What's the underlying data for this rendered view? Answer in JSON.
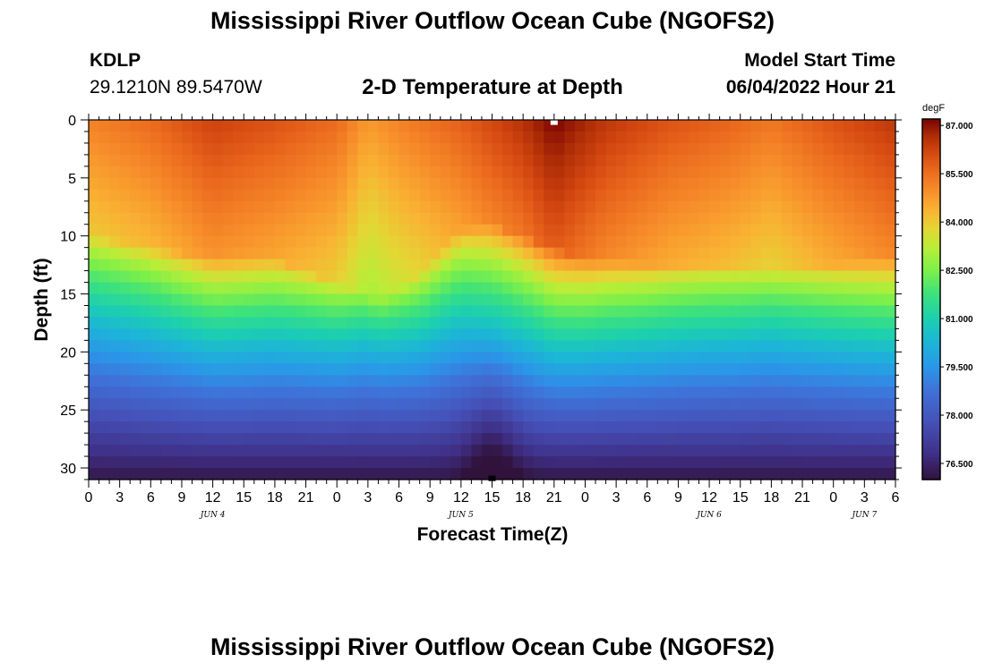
{
  "page": {
    "title": "Mississippi River Outflow Ocean Cube (NGOFS2)",
    "footer_title": "Mississippi River Outflow Ocean Cube (NGOFS2)"
  },
  "station": {
    "id": "KDLP",
    "coords": "29.1210N  89.5470W"
  },
  "model": {
    "start_label": "Model Start Time",
    "start_value": "06/04/2022 Hour 21"
  },
  "colors": {
    "stops": [
      [
        76.0,
        "#30123b"
      ],
      [
        76.8,
        "#3f2f86"
      ],
      [
        77.8,
        "#4551b8"
      ],
      [
        78.8,
        "#3f72d8"
      ],
      [
        79.5,
        "#2b96e8"
      ],
      [
        80.3,
        "#1cb6d6"
      ],
      [
        81.0,
        "#1ccfb0"
      ],
      [
        81.8,
        "#3ee27b"
      ],
      [
        82.5,
        "#7cef4b"
      ],
      [
        83.2,
        "#b7ee38"
      ],
      [
        83.8,
        "#e4d634"
      ],
      [
        84.4,
        "#f9b233"
      ],
      [
        85.0,
        "#f78d2a"
      ],
      [
        85.6,
        "#eb6a1e"
      ],
      [
        86.2,
        "#d24610"
      ],
      [
        86.7,
        "#ad2c06"
      ],
      [
        87.2,
        "#7a0403"
      ]
    ]
  },
  "chart_data": {
    "type": "heatmap",
    "title": "2-D Temperature at Depth",
    "xlabel": "Forecast Time(Z)",
    "ylabel": "Depth (ft)",
    "x_range_hours": [
      0,
      78
    ],
    "ylim": [
      0,
      31
    ],
    "x_ticks": [
      {
        "hour": 0,
        "label": "0"
      },
      {
        "hour": 3,
        "label": "3"
      },
      {
        "hour": 6,
        "label": "6"
      },
      {
        "hour": 9,
        "label": "9"
      },
      {
        "hour": 12,
        "label": "12"
      },
      {
        "hour": 15,
        "label": "15"
      },
      {
        "hour": 18,
        "label": "18"
      },
      {
        "hour": 21,
        "label": "21"
      },
      {
        "hour": 24,
        "label": "0"
      },
      {
        "hour": 27,
        "label": "3"
      },
      {
        "hour": 30,
        "label": "6"
      },
      {
        "hour": 33,
        "label": "9"
      },
      {
        "hour": 36,
        "label": "12"
      },
      {
        "hour": 39,
        "label": "15"
      },
      {
        "hour": 42,
        "label": "18"
      },
      {
        "hour": 45,
        "label": "21"
      },
      {
        "hour": 48,
        "label": "0"
      },
      {
        "hour": 51,
        "label": "3"
      },
      {
        "hour": 54,
        "label": "6"
      },
      {
        "hour": 57,
        "label": "9"
      },
      {
        "hour": 60,
        "label": "12"
      },
      {
        "hour": 63,
        "label": "15"
      },
      {
        "hour": 66,
        "label": "18"
      },
      {
        "hour": 69,
        "label": "21"
      },
      {
        "hour": 72,
        "label": "0"
      },
      {
        "hour": 75,
        "label": "3"
      },
      {
        "hour": 78,
        "label": "6"
      }
    ],
    "day_labels": [
      {
        "hour": 12,
        "label": "JUN 4"
      },
      {
        "hour": 36,
        "label": "JUN 5"
      },
      {
        "hour": 60,
        "label": "JUN 6"
      },
      {
        "hour": 75,
        "label": "JUN 7"
      }
    ],
    "y_ticks": [
      0,
      5,
      10,
      15,
      20,
      25,
      30
    ],
    "colorbar": {
      "unit": "degF",
      "min": 76.0,
      "max": 87.2,
      "ticks": [
        "87.000",
        "85.500",
        "84.000",
        "82.500",
        "81.000",
        "79.500",
        "78.000",
        "76.500"
      ]
    },
    "markers": [
      {
        "name": "surface-marker",
        "hour": 45,
        "depth": 0.2,
        "color": "#ffffff"
      },
      {
        "name": "bottom-marker",
        "hour": 39,
        "depth": 30.9,
        "color": "#000000"
      }
    ],
    "grid": {
      "cols": 78,
      "rows": 31,
      "surface_temp_by_hour": [
        [
          0,
          85.2
        ],
        [
          6,
          85.6
        ],
        [
          12,
          86.3
        ],
        [
          18,
          86.0
        ],
        [
          24,
          85.6
        ],
        [
          27,
          84.8
        ],
        [
          30,
          85.2
        ],
        [
          36,
          85.8
        ],
        [
          42,
          86.6
        ],
        [
          45,
          87.2
        ],
        [
          50,
          86.5
        ],
        [
          56,
          86.0
        ],
        [
          62,
          85.7
        ],
        [
          66,
          85.4
        ],
        [
          72,
          86.0
        ],
        [
          78,
          86.5
        ]
      ],
      "mixed_layer_depth_by_hour": [
        [
          0,
          10
        ],
        [
          6,
          11
        ],
        [
          12,
          12
        ],
        [
          18,
          12
        ],
        [
          24,
          14
        ],
        [
          28,
          15.5
        ],
        [
          32,
          13.5
        ],
        [
          36,
          9.5
        ],
        [
          39,
          9
        ],
        [
          42,
          10
        ],
        [
          48,
          12
        ],
        [
          54,
          12.5
        ],
        [
          60,
          12.5
        ],
        [
          66,
          13
        ],
        [
          72,
          12.5
        ],
        [
          78,
          12
        ]
      ],
      "bottom_temp": 76.3,
      "cold_anomaly": {
        "hour": 39,
        "width_hours": 2.5,
        "delta": -0.8
      }
    }
  }
}
